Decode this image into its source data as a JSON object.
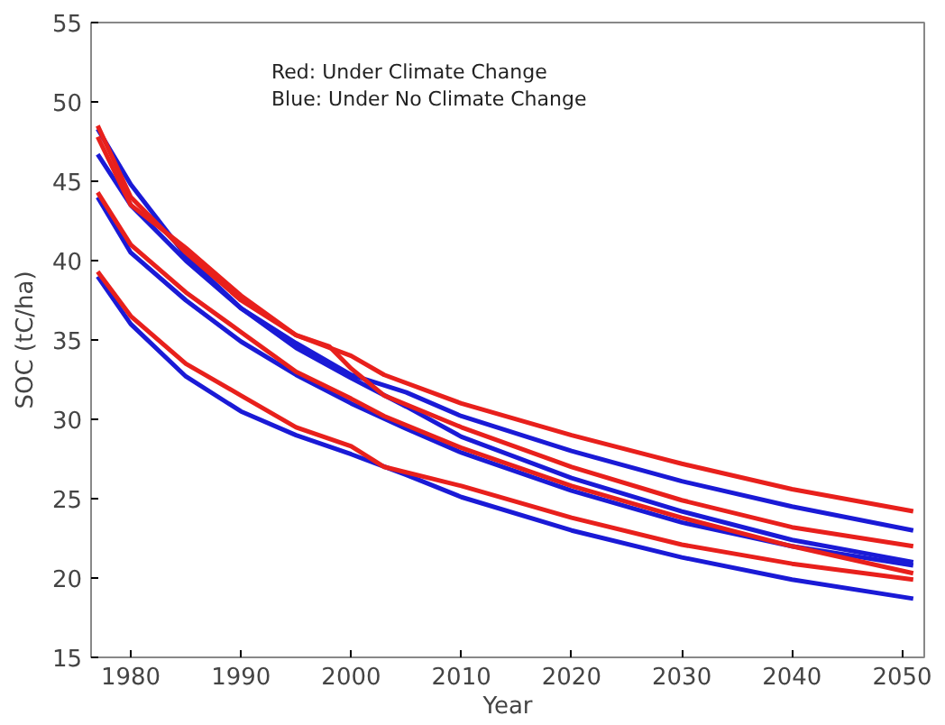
{
  "chart_data": {
    "type": "line",
    "xlabel": "Year",
    "ylabel": "SOC (tC/ha)",
    "annotations": [
      "Red:  Under Climate Change",
      "Blue: Under No Climate Change"
    ],
    "xlim": [
      1976.4,
      2052
    ],
    "ylim": [
      15,
      55
    ],
    "xticks": [
      1980,
      1990,
      2000,
      2010,
      2020,
      2030,
      2040,
      2050
    ],
    "yticks": [
      15,
      20,
      25,
      30,
      35,
      40,
      45,
      50,
      55
    ],
    "grid": false,
    "marker": "none",
    "line_style": "solid",
    "series": [
      {
        "color": "#1a1ad6",
        "x": [
          1977,
          1980,
          1985,
          1990,
          1995,
          2000,
          2005,
          2010,
          2020,
          2030,
          2040,
          2051
        ],
        "values": [
          46.7,
          43.5,
          40,
          37,
          34.8,
          32.8,
          31.7,
          30.2,
          28.0,
          26.1,
          24.5,
          23.0
        ]
      },
      {
        "color": "#1a1ad6",
        "x": [
          1977,
          1980,
          1985,
          1990,
          1995,
          2000,
          2005,
          2010,
          2020,
          2030,
          2040,
          2051
        ],
        "values": [
          48.3,
          44.8,
          40.3,
          37.0,
          34.5,
          32.6,
          30.8,
          28.9,
          26.3,
          24.2,
          22.4,
          21.0
        ]
      },
      {
        "color": "#1a1ad6",
        "x": [
          1977,
          1980,
          1985,
          1990,
          1995,
          2000,
          2005,
          2010,
          2020,
          2030,
          2040,
          2051
        ],
        "values": [
          44,
          40.5,
          37.5,
          34.9,
          32.8,
          31.0,
          29.4,
          27.9,
          25.5,
          23.5,
          22.0,
          20.8
        ]
      },
      {
        "color": "#1a1ad6",
        "x": [
          1977,
          1980,
          1985,
          1990,
          1995,
          2000,
          2005,
          2010,
          2020,
          2030,
          2040,
          2051
        ],
        "values": [
          39.0,
          36.0,
          32.7,
          30.5,
          29.0,
          27.8,
          26.5,
          25.1,
          23.0,
          21.3,
          19.9,
          18.7
        ]
      },
      {
        "color": "#e8201c",
        "x": [
          1977,
          1980,
          1985,
          1990,
          1995,
          2000,
          2003,
          2010,
          2020,
          2030,
          2040,
          2051
        ],
        "values": [
          48.5,
          44,
          40.5,
          37.5,
          35.3,
          34.0,
          32.8,
          31.0,
          29.0,
          27.2,
          25.6,
          24.2
        ]
      },
      {
        "color": "#e8201c",
        "x": [
          1977,
          1980,
          1985,
          1990,
          1995,
          1998,
          2000,
          2003,
          2010,
          2020,
          2030,
          2040,
          2051
        ],
        "values": [
          47.8,
          43.5,
          40.8,
          37.8,
          35.3,
          34.6,
          33.2,
          31.5,
          29.5,
          27.0,
          24.9,
          23.2,
          22.0
        ]
      },
      {
        "color": "#e8201c",
        "x": [
          1977,
          1980,
          1985,
          1990,
          1995,
          2000,
          2003,
          2010,
          2020,
          2030,
          2040,
          2051
        ],
        "values": [
          44.3,
          41,
          38,
          35.5,
          33,
          31.3,
          30.2,
          28.2,
          25.8,
          23.8,
          22.0,
          20.3
        ]
      },
      {
        "color": "#e8201c",
        "x": [
          1977,
          1980,
          1985,
          1990,
          1995,
          2000,
          2003,
          2010,
          2020,
          2030,
          2040,
          2051
        ],
        "values": [
          39.3,
          36.5,
          33.5,
          31.5,
          29.5,
          28.3,
          27.0,
          25.8,
          23.8,
          22.1,
          20.9,
          19.9
        ]
      }
    ]
  }
}
